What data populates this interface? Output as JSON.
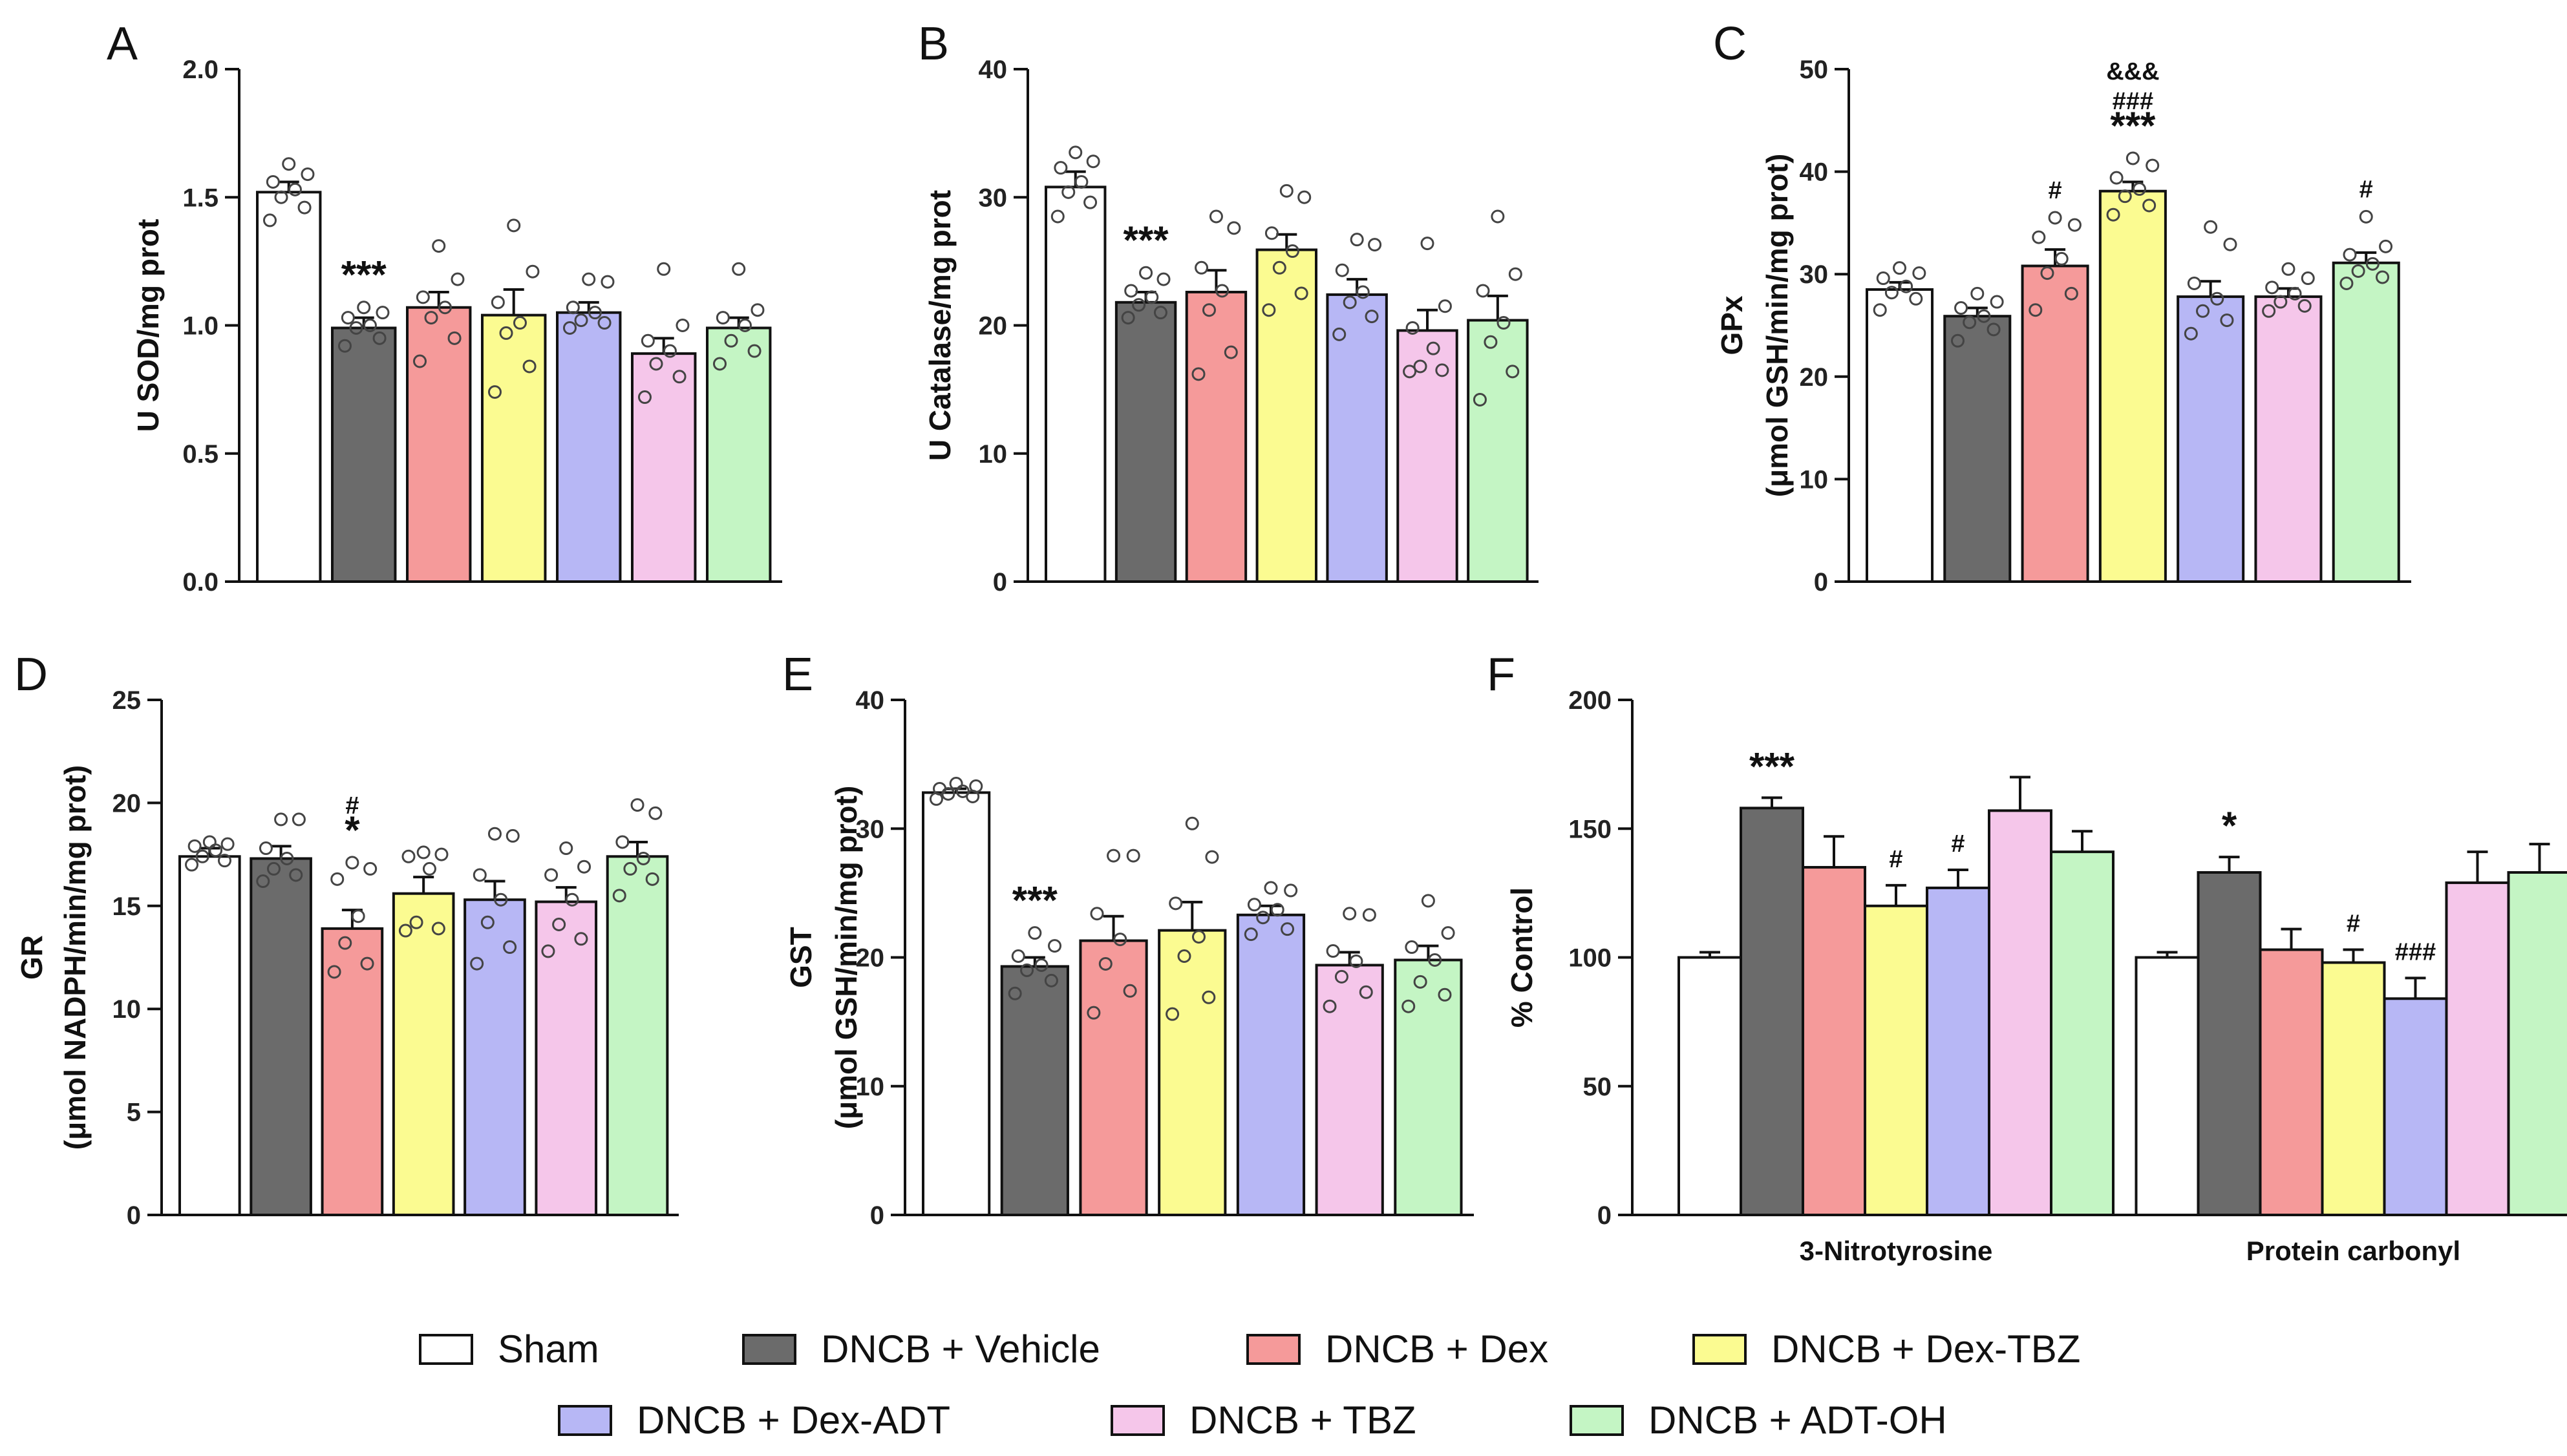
{
  "legend": [
    {
      "label": "Sham",
      "color": "#ffffff"
    },
    {
      "label": "DNCB + Vehicle",
      "color": "#6b6b6b"
    },
    {
      "label": "DNCB + Dex",
      "color": "#f59a9a"
    },
    {
      "label": "DNCB + Dex-TBZ",
      "color": "#fbfb91"
    },
    {
      "label": "DNCB + Dex-ADT",
      "color": "#b7b7f5"
    },
    {
      "label": "DNCB + TBZ",
      "color": "#f5c6ea"
    },
    {
      "label": "DNCB + ADT-OH",
      "color": "#c4f5c4"
    }
  ],
  "chart_data": [
    {
      "panel": "A",
      "type": "bar",
      "ylabel": [
        "U SOD/mg prot"
      ],
      "ylim": [
        0,
        2.0
      ],
      "yticks": [
        "0.0",
        "0.5",
        "1.0",
        "1.5",
        "2.0"
      ],
      "categories": [
        "Sham",
        "DNCB + Vehicle",
        "DNCB + Dex",
        "DNCB + Dex-TBZ",
        "DNCB + Dex-ADT",
        "DNCB + TBZ",
        "DNCB + ADT-OH"
      ],
      "values": [
        1.52,
        0.99,
        1.07,
        1.04,
        1.05,
        0.89,
        0.99
      ],
      "errors": [
        0.04,
        0.04,
        0.06,
        0.1,
        0.04,
        0.06,
        0.04
      ],
      "points": [
        [
          1.41,
          1.46,
          1.5,
          1.53,
          1.56,
          1.59,
          1.63
        ],
        [
          0.92,
          0.95,
          0.99,
          1.0,
          1.03,
          1.05,
          1.07
        ],
        [
          0.86,
          0.95,
          1.03,
          1.07,
          1.11,
          1.18,
          1.31
        ],
        [
          0.74,
          0.84,
          0.97,
          1.01,
          1.09,
          1.21,
          1.39
        ],
        [
          0.99,
          1.01,
          1.02,
          1.05,
          1.07,
          1.17,
          1.18
        ],
        [
          0.72,
          0.8,
          0.85,
          0.9,
          0.94,
          1.0,
          1.22
        ],
        [
          0.85,
          0.9,
          0.94,
          1.0,
          1.03,
          1.06,
          1.22
        ]
      ],
      "annotations": [
        {
          "group": 1,
          "lines": [
            "***"
          ]
        }
      ]
    },
    {
      "panel": "B",
      "type": "bar",
      "ylabel": [
        "U Catalase/mg prot"
      ],
      "ylim": [
        0,
        40
      ],
      "yticks": [
        "0",
        "10",
        "20",
        "30",
        "40"
      ],
      "categories": [
        "Sham",
        "DNCB + Vehicle",
        "DNCB + Dex",
        "DNCB + Dex-TBZ",
        "DNCB + Dex-ADT",
        "DNCB + TBZ",
        "DNCB + ADT-OH"
      ],
      "values": [
        30.8,
        21.8,
        22.6,
        25.9,
        22.4,
        19.6,
        20.4
      ],
      "errors": [
        1.2,
        0.8,
        1.7,
        1.2,
        1.2,
        1.6,
        1.9
      ],
      "points": [
        [
          28.5,
          29.6,
          30.4,
          31.2,
          32.3,
          32.8,
          33.5
        ],
        [
          20.6,
          21.0,
          21.6,
          22.2,
          22.7,
          23.6,
          24.1
        ],
        [
          16.2,
          17.9,
          21.2,
          22.7,
          24.5,
          27.6,
          28.5
        ],
        [
          21.2,
          22.5,
          24.5,
          25.8,
          27.2,
          30.0,
          30.5
        ],
        [
          19.3,
          20.7,
          21.8,
          22.6,
          24.3,
          26.3,
          26.7
        ],
        [
          16.4,
          16.5,
          16.8,
          18.2,
          19.8,
          21.5,
          26.4
        ],
        [
          14.2,
          16.4,
          18.7,
          20.2,
          22.7,
          24.0,
          28.5
        ]
      ],
      "annotations": [
        {
          "group": 1,
          "lines": [
            "***"
          ]
        }
      ]
    },
    {
      "panel": "C",
      "type": "bar",
      "ylabel": [
        "GPx",
        "(μmol GSH/min/mg prot)"
      ],
      "ylim": [
        0,
        50
      ],
      "yticks": [
        "0",
        "10",
        "20",
        "30",
        "40",
        "50"
      ],
      "categories": [
        "Sham",
        "DNCB + Vehicle",
        "DNCB + Dex",
        "DNCB + Dex-TBZ",
        "DNCB + Dex-ADT",
        "DNCB + TBZ",
        "DNCB + ADT-OH"
      ],
      "values": [
        28.5,
        25.9,
        30.8,
        38.1,
        27.8,
        27.8,
        31.1
      ],
      "errors": [
        0.7,
        0.8,
        1.6,
        0.9,
        1.5,
        0.8,
        1.0
      ],
      "points": [
        [
          26.5,
          27.6,
          28.2,
          28.8,
          29.6,
          30.1,
          30.6
        ],
        [
          23.5,
          24.6,
          25.3,
          25.9,
          26.7,
          27.3,
          28.1
        ],
        [
          26.5,
          28.1,
          30.1,
          31.5,
          33.6,
          34.8,
          35.5
        ],
        [
          35.8,
          36.7,
          37.6,
          38.3,
          39.4,
          40.6,
          41.3
        ],
        [
          24.2,
          25.5,
          26.4,
          27.6,
          29.1,
          32.9,
          34.6
        ],
        [
          26.4,
          26.9,
          27.3,
          28.1,
          28.7,
          29.6,
          30.5
        ],
        [
          29.1,
          29.7,
          30.3,
          31.0,
          31.9,
          32.7,
          35.6
        ]
      ],
      "annotations": [
        {
          "group": 2,
          "lines": [
            "#"
          ]
        },
        {
          "group": 3,
          "lines": [
            "&&&",
            "###",
            "***"
          ]
        },
        {
          "group": 6,
          "lines": [
            "#"
          ]
        }
      ]
    },
    {
      "panel": "D",
      "type": "bar",
      "ylabel": [
        "GR",
        "(μmol NADPH/min/mg prot)"
      ],
      "ylim": [
        0,
        25
      ],
      "yticks": [
        "0",
        "5",
        "10",
        "15",
        "20",
        "25"
      ],
      "categories": [
        "Sham",
        "DNCB + Vehicle",
        "DNCB + Dex",
        "DNCB + Dex-TBZ",
        "DNCB + Dex-ADT",
        "DNCB + TBZ",
        "DNCB + ADT-OH"
      ],
      "values": [
        17.4,
        17.3,
        13.9,
        15.6,
        15.3,
        15.2,
        17.4
      ],
      "errors": [
        0.4,
        0.6,
        0.9,
        0.8,
        0.9,
        0.7,
        0.7
      ],
      "points": [
        [
          17.0,
          17.2,
          17.4,
          17.7,
          17.9,
          18.0,
          18.1
        ],
        [
          16.2,
          16.5,
          16.8,
          17.3,
          17.8,
          19.2,
          19.2
        ],
        [
          11.8,
          12.2,
          13.2,
          14.5,
          16.3,
          16.8,
          17.1
        ],
        [
          13.8,
          13.9,
          14.2,
          16.8,
          17.4,
          17.5,
          17.6
        ],
        [
          12.2,
          13.0,
          14.2,
          15.3,
          16.5,
          18.4,
          18.5
        ],
        [
          12.8,
          13.4,
          14.1,
          15.3,
          16.5,
          16.9,
          17.8
        ],
        [
          15.5,
          16.3,
          16.8,
          17.3,
          18.1,
          19.5,
          19.9
        ]
      ],
      "annotations": [
        {
          "group": 2,
          "lines": [
            "#",
            "*"
          ]
        }
      ]
    },
    {
      "panel": "E",
      "type": "bar",
      "ylabel": [
        "GST",
        "(μmol GSH/min/mg prot)"
      ],
      "ylim": [
        0,
        40
      ],
      "yticks": [
        "0",
        "10",
        "20",
        "30",
        "40"
      ],
      "categories": [
        "Sham",
        "DNCB + Vehicle",
        "DNCB + Dex",
        "DNCB + Dex-TBZ",
        "DNCB + Dex-ADT",
        "DNCB + TBZ",
        "DNCB + ADT-OH"
      ],
      "values": [
        32.8,
        19.3,
        21.3,
        22.1,
        23.3,
        19.4,
        19.8
      ],
      "errors": [
        0.3,
        0.7,
        1.9,
        2.2,
        0.7,
        1.0,
        1.1
      ],
      "points": [
        [
          32.3,
          32.5,
          32.7,
          32.9,
          33.1,
          33.3,
          33.5
        ],
        [
          17.2,
          18.2,
          19.0,
          19.4,
          20.1,
          20.9,
          21.9
        ],
        [
          15.7,
          17.4,
          19.5,
          21.4,
          23.4,
          27.9,
          27.9
        ],
        [
          15.6,
          16.9,
          20.1,
          21.6,
          24.2,
          27.8,
          30.4
        ],
        [
          21.8,
          22.2,
          23.1,
          23.7,
          24.1,
          25.2,
          25.4
        ],
        [
          16.2,
          17.3,
          18.5,
          19.7,
          20.5,
          23.3,
          23.4
        ],
        [
          16.2,
          17.1,
          18.1,
          19.8,
          20.8,
          21.9,
          24.4
        ]
      ],
      "annotations": [
        {
          "group": 1,
          "lines": [
            "***"
          ]
        }
      ]
    },
    {
      "panel": "F",
      "type": "bar",
      "ylabel": [
        "% Control"
      ],
      "ylim": [
        0,
        200
      ],
      "yticks": [
        "0",
        "50",
        "100",
        "150",
        "200"
      ],
      "categories": [
        "3-Nitrotyrosine",
        "Protein carbonyl"
      ],
      "series": [
        {
          "name": "Sham",
          "values": [
            100,
            100
          ],
          "errors": [
            2,
            2
          ]
        },
        {
          "name": "DNCB + Vehicle",
          "values": [
            158,
            133
          ],
          "errors": [
            4,
            6
          ]
        },
        {
          "name": "DNCB + Dex",
          "values": [
            135,
            103
          ],
          "errors": [
            12,
            8
          ]
        },
        {
          "name": "DNCB + Dex-TBZ",
          "values": [
            120,
            98
          ],
          "errors": [
            8,
            5
          ]
        },
        {
          "name": "DNCB + Dex-ADT",
          "values": [
            127,
            84
          ],
          "errors": [
            7,
            8
          ]
        },
        {
          "name": "DNCB + TBZ",
          "values": [
            157,
            129
          ],
          "errors": [
            13,
            12
          ]
        },
        {
          "name": "DNCB + ADT-OH",
          "values": [
            141,
            133
          ],
          "errors": [
            8,
            11
          ]
        }
      ],
      "annotations": [
        {
          "category": 0,
          "group": 1,
          "lines": [
            "***"
          ]
        },
        {
          "category": 0,
          "group": 3,
          "lines": [
            "#"
          ]
        },
        {
          "category": 0,
          "group": 4,
          "lines": [
            "#"
          ]
        },
        {
          "category": 1,
          "group": 1,
          "lines": [
            "*"
          ]
        },
        {
          "category": 1,
          "group": 3,
          "lines": [
            "#"
          ]
        },
        {
          "category": 1,
          "group": 4,
          "lines": [
            "###"
          ]
        }
      ]
    }
  ]
}
